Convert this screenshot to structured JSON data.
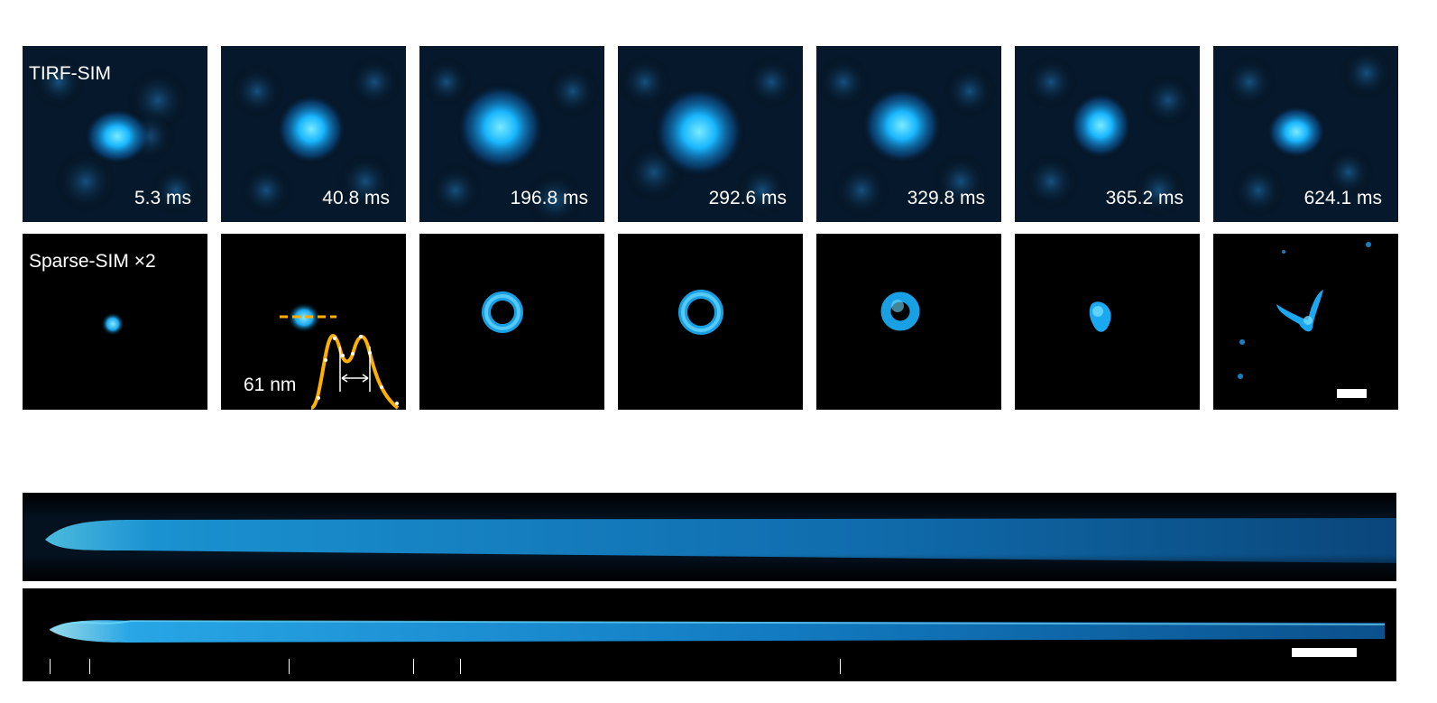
{
  "rows": {
    "tirf_label": "TIRF-SIM",
    "sparse_label": "Sparse-SIM ×2"
  },
  "timepoints": [
    "5.3 ms",
    "40.8 ms",
    "196.8 ms",
    "292.6 ms",
    "329.8 ms",
    "365.2 ms",
    "624.1 ms"
  ],
  "profile_annotation": "61 nm",
  "colors": {
    "signal": "#18b8ff",
    "signal_core": "#6fe4ff",
    "profile": "#ffb000",
    "background": "#000000"
  },
  "icons": [
    "scale-bar",
    "line-profile"
  ]
}
